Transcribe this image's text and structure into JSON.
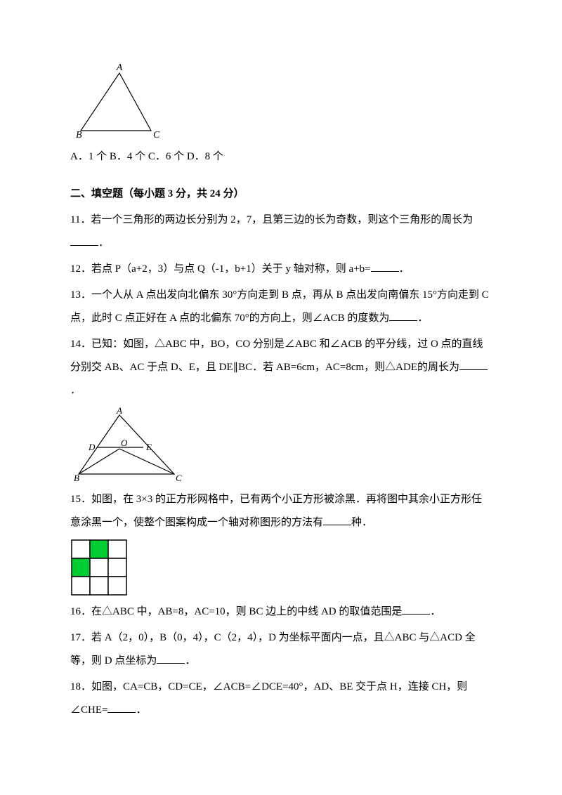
{
  "figure1": {
    "labels": {
      "A": "A",
      "B": "B",
      "C": "C"
    },
    "stroke": "#000000"
  },
  "q10_options": "A．1 个 B．4 个 C．6 个 D．8 个",
  "section2_title": "二、填空题（每小题 3 分，共 24 分）",
  "q11_a": "11．若一个三角形的两边长分别为 2，7，且第三边的长为奇数，则这个三角形的周长为",
  "q11_b": "．",
  "q12_a": "12．若点 P（a+2，3）与点 Q（-1，b+1）关于 y 轴对称，则 a+b=",
  "q12_b": "．",
  "q13_a": "13．一个人从 A 点出发向北偏东 30°方向走到 B 点，再从 B 点出发向南偏东 15°方向走到 C 点，此时 C 点正好在 A 点的北偏东 70°的方向上，则∠ACB 的度数为",
  "q13_b": "．",
  "q14_a": "14．已知：如图，△ABC 中，BO，CO 分别是∠ABC 和∠ACB 的平分线，过 O 点的直线分别交 AB、AC 于点 D、E，且 DE∥BC．若 AB=6cm，AC=8cm，则△ADE的周长为",
  "q14_b": "．",
  "figure2": {
    "labels": {
      "A": "A",
      "B": "B",
      "C": "C",
      "D": "D",
      "E": "E",
      "O": "O"
    },
    "stroke": "#000000"
  },
  "q15_a": "15．如图，在 3×3 的正方形网格中，已有两个小正方形被涂黑．再将图中其余小正方形任意涂黑一个，使整个图案构成一个轴对称图形的方法有",
  "q15_b": "种．",
  "figure3": {
    "grid_stroke": "#000000",
    "fill_color": "#00cc33",
    "filled_cells": [
      [
        1,
        0
      ],
      [
        0,
        1
      ]
    ]
  },
  "q16_a": "16．在△ABC 中，AB=8，AC=10，则 BC 边上的中线 AD 的取值范围是",
  "q16_b": "．",
  "q17_a": "17．若 A（2，0），B（0，4），C（2，4），D 为坐标平面内一点，且△ABC 与△ACD 全等，则 D 点坐标为",
  "q17_b": "．",
  "q18_a": "18．如图，CA=CB，CD=CE，∠ACB=∠DCE=40°，AD、BE 交于点 H，连接 CH，则∠CHE=",
  "q18_b": "．"
}
